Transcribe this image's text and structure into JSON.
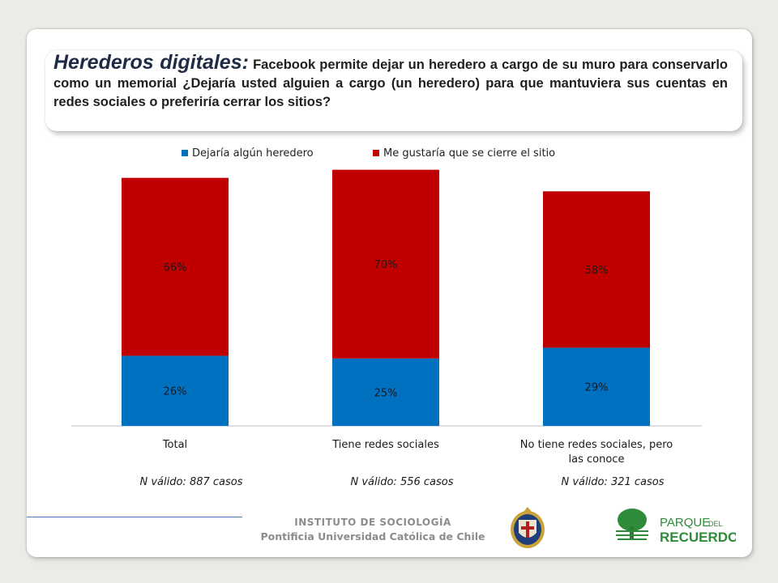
{
  "title": {
    "main": "Herederos digitales:",
    "question": " Facebook permite dejar un heredero a cargo de su muro para conservarlo como un memorial ¿Dejaría usted alguien a cargo (un heredero) para que mantuviera sus cuentas en  redes sociales o preferiría cerrar los sitios?"
  },
  "chart_data": {
    "type": "bar",
    "stacked": true,
    "categories": [
      "Total",
      "Tiene redes sociales",
      "No tiene redes sociales, pero las conoce"
    ],
    "series": [
      {
        "name": "Dejaría algún heredero",
        "color": "#0070c0",
        "values": [
          26,
          25,
          29
        ],
        "labels": [
          "26%",
          "25%",
          "29%"
        ]
      },
      {
        "name": "Me gustaría que se cierre el sitio",
        "color": "#c00000",
        "values": [
          66,
          70,
          58
        ],
        "labels": [
          "66%",
          "70%",
          "58%"
        ]
      }
    ],
    "legend_position": "top",
    "grid": false
  },
  "notes": [
    "N válido: 887 casos",
    "N válido: 556 casos",
    "N válido: 321 casos"
  ],
  "footer": {
    "institute": "INSTITUTO DE SOCIOLOGÍA",
    "university": "Pontificia Universidad Católica de Chile",
    "logo_text_1": "PARQUE",
    "logo_text_2": "DEL",
    "logo_text_3": "RECUERDO"
  }
}
